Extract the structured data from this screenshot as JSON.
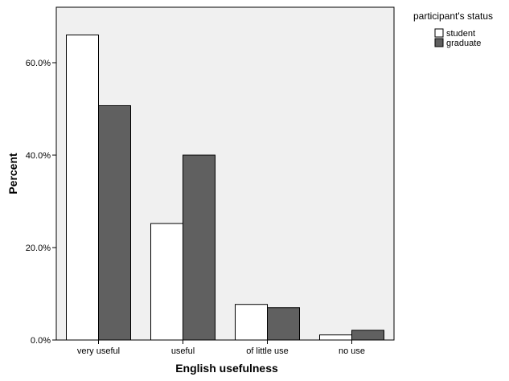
{
  "chart_data": {
    "type": "bar",
    "xlabel": "English usefulness",
    "ylabel": "Percent",
    "categories": [
      "very useful",
      "useful",
      "of little use",
      "no use"
    ],
    "series": [
      {
        "name": "student",
        "values": [
          66.0,
          25.2,
          7.7,
          1.1
        ],
        "color": "#ffffff"
      },
      {
        "name": "graduate",
        "values": [
          50.7,
          40.0,
          7.0,
          2.1
        ],
        "color": "#606060"
      }
    ],
    "ylim": [
      0,
      72
    ],
    "yticks": [
      0,
      20,
      40,
      60
    ],
    "ytick_labels": [
      "0.0%",
      "20.0%",
      "40.0%",
      "60.0%"
    ],
    "legend": {
      "title": "participant's status",
      "placement": "outside-top-right"
    },
    "plot_background": "#f0f0f0",
    "grid": false
  }
}
